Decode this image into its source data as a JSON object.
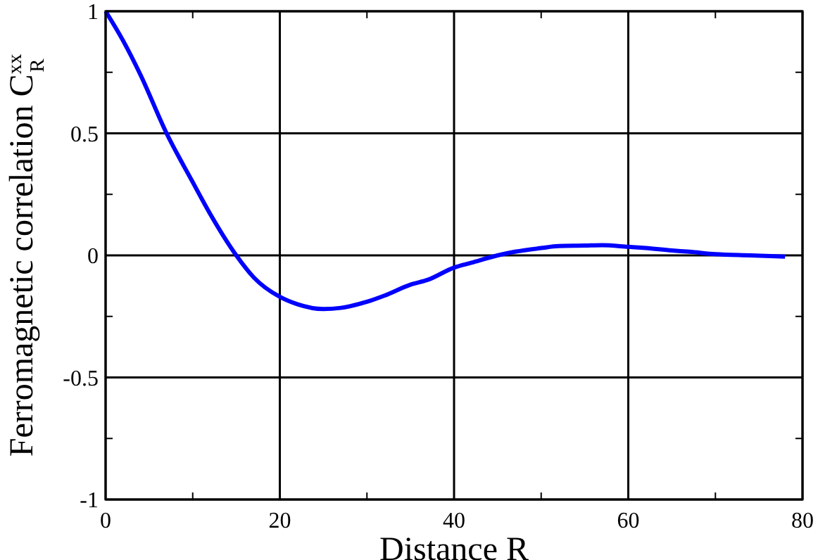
{
  "chart_data": {
    "type": "line",
    "xlabel": "Distance R",
    "ylabel": "Ferromagnetic correlation C$^{xx}$$_{R}$",
    "x": [
      0,
      2,
      4,
      7,
      10,
      12,
      15,
      17,
      20,
      22,
      25,
      27,
      30,
      32,
      35,
      37,
      40,
      42,
      45,
      47,
      50,
      52,
      55,
      57,
      60,
      62,
      65,
      67,
      70,
      74,
      78
    ],
    "series": [
      {
        "color": "#0000ff",
        "values": [
          1.0,
          0.88,
          0.74,
          0.5,
          0.3,
          0.17,
          0.0,
          -0.09,
          -0.17,
          -0.2,
          -0.22,
          -0.215,
          -0.19,
          -0.165,
          -0.12,
          -0.1,
          -0.05,
          -0.03,
          0.0,
          0.015,
          0.03,
          0.038,
          0.04,
          0.042,
          0.035,
          0.03,
          0.02,
          0.015,
          0.005,
          0.0,
          -0.005
        ]
      }
    ],
    "xlim": [
      0,
      80
    ],
    "xticks": [
      0,
      {
        "value": 10,
        "label": null
      },
      20,
      {
        "value": 30,
        "label": null
      },
      40,
      {
        "value": 50,
        "label": null
      },
      60,
      {
        "value": 70,
        "label": null
      },
      80
    ],
    "ylim": [
      -1,
      1
    ],
    "yticks": [
      -1,
      {
        "value": -0.75,
        "label": null
      },
      -0.5,
      {
        "value": -0.25,
        "label": null
      },
      0,
      {
        "value": 0.25,
        "label": null
      },
      0.5,
      {
        "value": 0.75,
        "label": null
      },
      1
    ],
    "grid": true,
    "marker": "none",
    "line_style": "solid"
  }
}
